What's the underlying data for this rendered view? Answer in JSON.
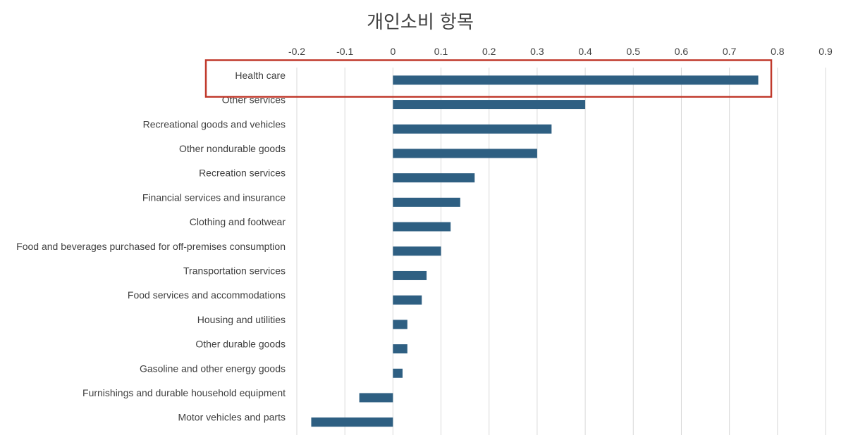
{
  "chart_data": {
    "type": "bar",
    "orientation": "horizontal",
    "title": "개인소비 항목",
    "xlabel": "",
    "ylabel": "",
    "xlim": [
      -0.2,
      0.9
    ],
    "x_ticks": [
      "-0.2",
      "-0.1",
      "0",
      "0.1",
      "0.2",
      "0.3",
      "0.4",
      "0.5",
      "0.6",
      "0.7",
      "0.8",
      "0.9"
    ],
    "x_axis_position": "top",
    "grid": true,
    "legend": "none",
    "bar_color": "#2e5f82",
    "highlight_color": "#c0392b",
    "highlighted_category": "Health care",
    "categories": [
      "Health care",
      "Other services",
      "Recreational goods and vehicles",
      "Other nondurable goods",
      "Recreation services",
      "Financial services and insurance",
      "Clothing and footwear",
      "Food and beverages purchased for off-premises consumption",
      "Transportation services",
      "Food services and accommodations",
      "Housing and utilities",
      "Other durable goods",
      "Gasoline and other energy goods",
      "Furnishings and durable household equipment",
      "Motor vehicles and parts"
    ],
    "values": [
      0.76,
      0.4,
      0.33,
      0.3,
      0.17,
      0.14,
      0.12,
      0.1,
      0.07,
      0.06,
      0.03,
      0.03,
      0.02,
      -0.07,
      -0.17
    ]
  }
}
